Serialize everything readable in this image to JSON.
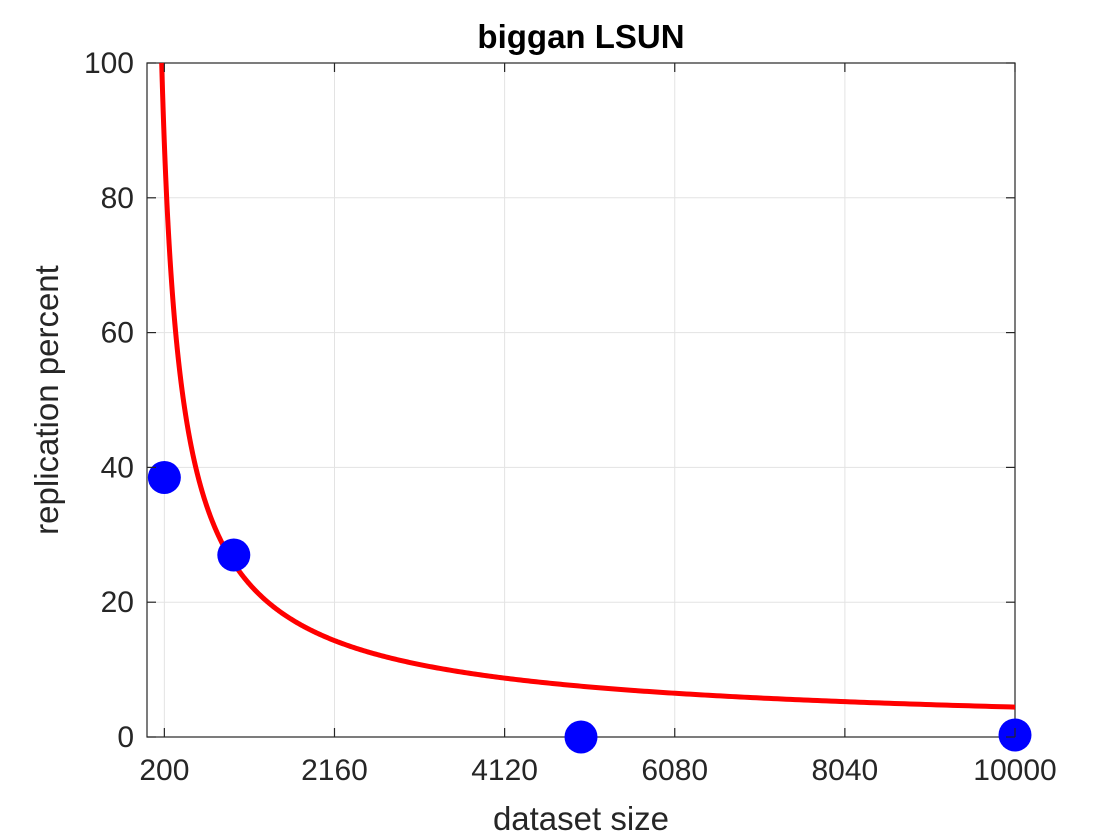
{
  "chart_data": {
    "type": "scatter",
    "title": "biggan LSUN",
    "xlabel": "dataset size",
    "ylabel": "replication percent",
    "xlim": [
      0,
      10000
    ],
    "ylim": [
      0,
      100
    ],
    "xticks": [
      200,
      2160,
      4120,
      6080,
      8040,
      10000
    ],
    "yticks": [
      0,
      20,
      40,
      60,
      80,
      100
    ],
    "xtick_labels": [
      "200",
      "2160",
      "4120",
      "6080",
      "8040",
      "10000"
    ],
    "ytick_labels": [
      "0",
      "20",
      "40",
      "60",
      "80",
      "100"
    ],
    "grid": true,
    "series": [
      {
        "kind": "scatter",
        "color": "#0000ff",
        "points": [
          {
            "x": 200,
            "y": 38.5
          },
          {
            "x": 1000,
            "y": 27.0
          },
          {
            "x": 5000,
            "y": 0
          },
          {
            "x": 10000,
            "y": 0.3
          }
        ]
      },
      {
        "kind": "fit-line",
        "color": "#ff0000",
        "fit": {
          "form": "a*x^b",
          "a": 5028,
          "b": -0.7635
        },
        "x_range": [
          60,
          10000
        ]
      }
    ]
  }
}
